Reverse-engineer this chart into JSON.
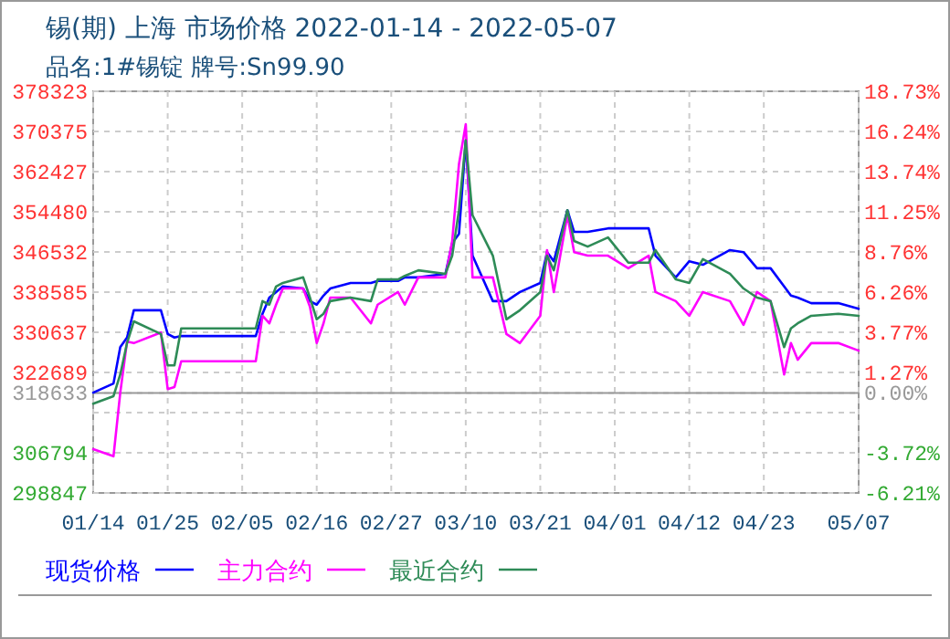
{
  "chart_data": {
    "type": "line",
    "title": "锡(期) 上海 市场价格 2022-01-14 - 2022-05-07",
    "subtitle": "品名:1#锡锭 牌号:Sn99.90",
    "x": [
      "--01-14",
      "--01-17",
      "--01-18",
      "--01-19",
      "--01-20",
      "--01-24",
      "--01-25",
      "--01-26",
      "--01-27",
      "--02-07",
      "--02-08",
      "--02-09",
      "--02-10",
      "--02-11",
      "--02-14",
      "--02-15",
      "--02-16",
      "--02-17",
      "--02-18",
      "--02-21",
      "--02-24",
      "--02-25",
      "--02-28",
      "--03-01",
      "--03-03",
      "--03-07",
      "--03-08",
      "--03-09",
      "--03-10",
      "--03-11",
      "--03-14",
      "--03-16",
      "--03-18",
      "--03-21",
      "--03-22",
      "--03-23",
      "--03-25",
      "--03-26",
      "--03-28",
      "--03-31",
      "--04-03",
      "--04-06",
      "--04-07",
      "--04-10",
      "--04-12",
      "--04-14",
      "--04-18",
      "--04-20",
      "--04-22",
      "--04-24",
      "--04-26",
      "--04-27",
      "--04-28",
      "--04-30",
      "--05-04",
      "--05-07"
    ],
    "series": [
      {
        "name": "现货价格",
        "color": "#0000ff",
        "values": [
          318700,
          320500,
          327700,
          329600,
          335000,
          335000,
          330300,
          329600,
          329900,
          329900,
          334300,
          337500,
          338600,
          339700,
          339300,
          336800,
          336100,
          337900,
          339300,
          340400,
          340400,
          340800,
          340800,
          341500,
          341500,
          342200,
          348300,
          350100,
          368600,
          345800,
          336800,
          336800,
          338600,
          340400,
          346500,
          344700,
          354800,
          350500,
          350500,
          351200,
          351200,
          351200,
          345800,
          341500,
          344700,
          344000,
          346900,
          346500,
          343300,
          343300,
          339700,
          337900,
          337500,
          336400,
          336400,
          335300
        ]
      },
      {
        "name": "主力合约",
        "color": "#ff00ff",
        "values": [
          307500,
          306100,
          318700,
          328800,
          328500,
          330600,
          319400,
          319800,
          324900,
          324900,
          333900,
          332400,
          336100,
          339300,
          339300,
          335700,
          328500,
          332400,
          337500,
          337500,
          332400,
          336100,
          338600,
          336100,
          341500,
          341500,
          348700,
          363900,
          371800,
          341500,
          341500,
          330300,
          328500,
          333900,
          346900,
          338600,
          353800,
          346500,
          345800,
          345800,
          343300,
          345800,
          338600,
          336800,
          333900,
          338600,
          336800,
          332100,
          338600,
          336800,
          322300,
          328500,
          325200,
          328500,
          328500,
          327000
        ]
      },
      {
        "name": "最近合约",
        "color": "#2e8b57",
        "values": [
          316500,
          318000,
          322300,
          328500,
          332800,
          330300,
          324100,
          324100,
          331400,
          331400,
          336800,
          336100,
          339700,
          340400,
          341500,
          337500,
          333200,
          334300,
          336800,
          337500,
          336800,
          341100,
          341100,
          341800,
          342900,
          342200,
          345800,
          354800,
          368600,
          353800,
          345800,
          333200,
          335000,
          338600,
          345800,
          342900,
          354800,
          348700,
          347600,
          349400,
          344400,
          344400,
          346900,
          341100,
          340400,
          345100,
          342200,
          339300,
          337500,
          336800,
          327700,
          331400,
          332400,
          333900,
          334300,
          333900
        ]
      }
    ],
    "xlim": [
      "--01-14",
      "--05-07"
    ],
    "xticks": [
      {
        "value": "--01-14",
        "label": "01/14"
      },
      {
        "value": "--01-25",
        "label": "01/25"
      },
      {
        "value": "--02-05",
        "label": "02/05"
      },
      {
        "value": "--02-16",
        "label": "02/16"
      },
      {
        "value": "--02-27",
        "label": "02/27"
      },
      {
        "value": "--03-10",
        "label": "03/10"
      },
      {
        "value": "--03-21",
        "label": "03/21"
      },
      {
        "value": "--04-01",
        "label": "04/01"
      },
      {
        "value": "--04-12",
        "label": "04/12"
      },
      {
        "value": "--04-23",
        "label": "04/23"
      },
      {
        "value": "--05-07",
        "label": "05/07"
      }
    ],
    "ylim": [
      298847,
      378323
    ],
    "yticks": [
      298847,
      306794,
      {
        "value": 314742,
        "label": null
      },
      318633,
      322689,
      330637,
      338585,
      346532,
      354480,
      362427,
      370375,
      378323
    ],
    "y2lim": [
      -6.21,
      18.73
    ],
    "y2ticks": [
      {
        "value": -6.21,
        "label": "-6.21%"
      },
      {
        "value": -3.72,
        "label": "-3.72%"
      },
      {
        "value": 0,
        "label": "0.00%"
      },
      {
        "value": 1.27,
        "label": "1.27%"
      },
      {
        "value": 3.77,
        "label": "3.77%"
      },
      {
        "value": 6.26,
        "label": "6.26%"
      },
      {
        "value": 8.76,
        "label": "8.76%"
      },
      {
        "value": 11.25,
        "label": "11.25%"
      },
      {
        "value": 13.74,
        "label": "13.74%"
      },
      {
        "value": 16.24,
        "label": "16.24%"
      },
      {
        "value": 18.73,
        "label": "18.73%"
      }
    ],
    "ref_lines": [
      {
        "axis": "y2",
        "value": 0,
        "color": "#999999"
      }
    ],
    "grid": true,
    "legend": "bottom",
    "line_style": "solid"
  }
}
